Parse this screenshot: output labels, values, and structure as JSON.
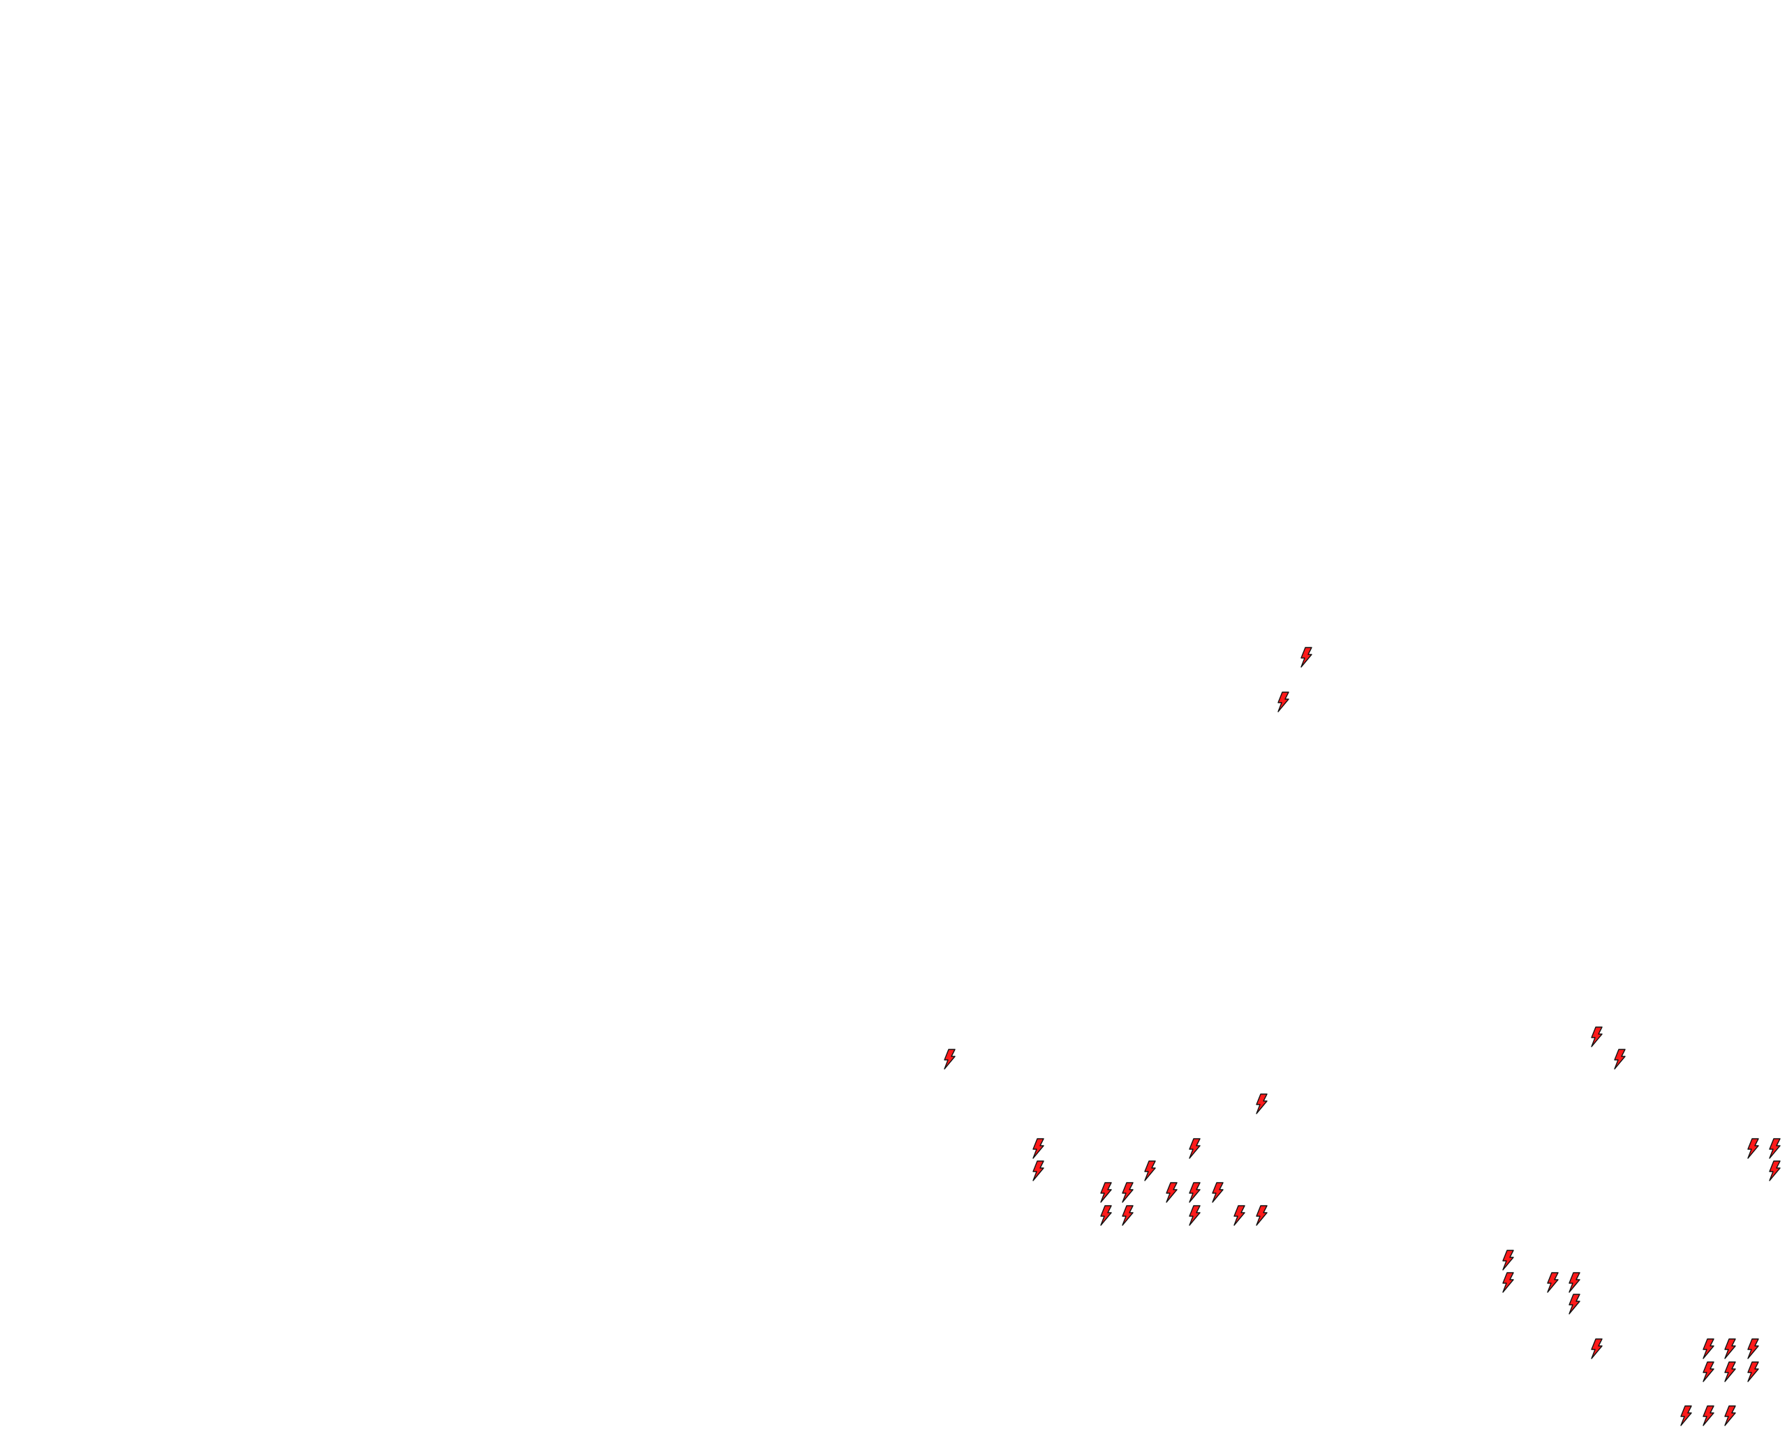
{
  "map": {
    "layer": "lightning-strikes",
    "marker_icon": "lightning-bolt-icon",
    "marker_fill": "#ff1a1a",
    "marker_stroke": "#111111",
    "background": "#ffffff",
    "marker_count": 38
  }
}
